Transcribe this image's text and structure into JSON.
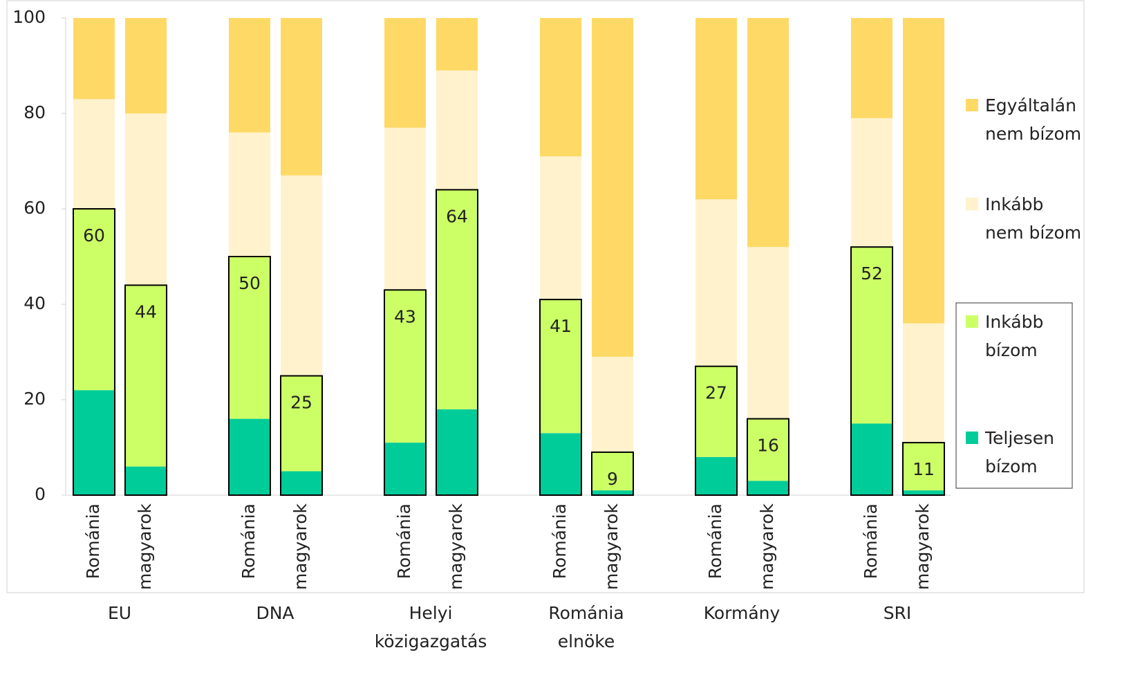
{
  "chart_data": {
    "type": "stacked-bar",
    "categories": [
      "Románia",
      "magyarok",
      "Románia",
      "magyarok",
      "Románia",
      "magyarok",
      "Románia",
      "magyarok",
      "Románia",
      "magyarok",
      "Románia",
      "magyarok"
    ],
    "groups": [
      "EU",
      "DNA",
      "Helyi közigazgatás",
      "Románia elnöke",
      "Kormány",
      "SRI"
    ],
    "series": [
      {
        "name": "Teljesen bízom",
        "color": "#00cc99",
        "values": [
          22,
          6,
          16,
          5,
          11,
          18,
          13,
          1,
          8,
          3,
          15,
          1
        ]
      },
      {
        "name": "Inkább bízom",
        "color": "#ccff66",
        "values": [
          38,
          38,
          34,
          20,
          32,
          46,
          28,
          8,
          19,
          13,
          37,
          10
        ]
      },
      {
        "name": "Inkább nem bízom",
        "color": "#fff2cc",
        "values": [
          23,
          36,
          26,
          42,
          34,
          25,
          30,
          20,
          35,
          36,
          27,
          25
        ]
      },
      {
        "name": "Egyáltalán nem bízom",
        "color": "#ffd966",
        "values": [
          17,
          20,
          24,
          33,
          23,
          11,
          29,
          71,
          38,
          48,
          21,
          64
        ]
      }
    ],
    "labels": [
      60,
      44,
      50,
      25,
      43,
      64,
      41,
      9,
      27,
      16,
      52,
      11
    ],
    "ylim": [
      0,
      100
    ],
    "yticks": [
      0,
      20,
      40,
      60,
      80,
      100
    ]
  }
}
